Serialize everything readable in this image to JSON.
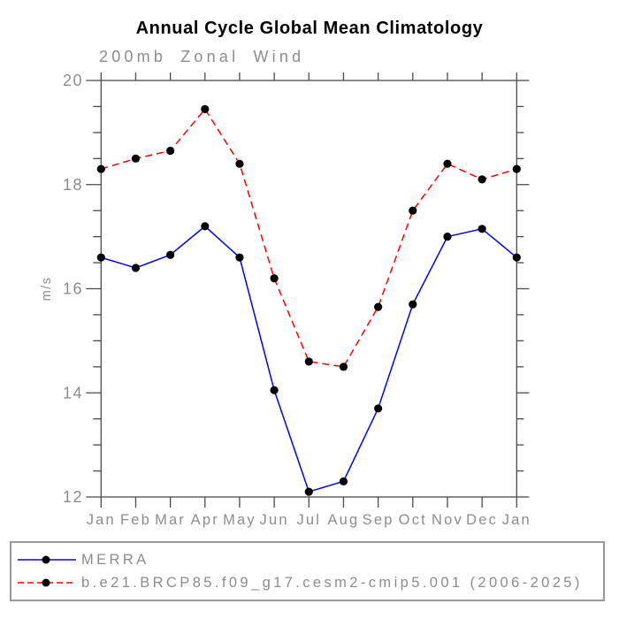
{
  "title": "Annual Cycle Global Mean Climatology",
  "chart_data": {
    "type": "line",
    "subtitle": "200mb Zonal Wind",
    "categories": [
      "Jan",
      "Feb",
      "Mar",
      "Apr",
      "May",
      "Jun",
      "Jul",
      "Aug",
      "Sep",
      "Oct",
      "Nov",
      "Dec",
      "Jan"
    ],
    "ylabel": "m/s",
    "ylim": [
      12,
      20
    ],
    "ytick_major": [
      12,
      14,
      16,
      18,
      20
    ],
    "ytick_minor_step": 0.5,
    "grid": false,
    "legend_position": "bottom",
    "series": [
      {
        "name": "MERRA",
        "line_color": "#0000ff",
        "line_style": "solid",
        "marker": "filled-circle",
        "marker_color": "#000000",
        "values": [
          16.6,
          16.4,
          16.65,
          17.2,
          16.6,
          14.05,
          12.1,
          12.3,
          13.7,
          15.7,
          17.0,
          17.15,
          16.6
        ]
      },
      {
        "name": "b.e21.BRCP85.f09_g17.cesm2-cmip5.001 (2006-2025)",
        "line_color": "#ff0000",
        "line_style": "dashed",
        "marker": "filled-circle",
        "marker_color": "#000000",
        "values": [
          18.3,
          18.5,
          18.65,
          19.45,
          18.4,
          16.2,
          14.6,
          14.5,
          15.65,
          17.5,
          18.4,
          18.1,
          18.3
        ]
      }
    ]
  },
  "colors": {
    "title_text": "#000000",
    "label_text": "#8c8c8c",
    "axis": "#4a4a4a",
    "legend_border": "#999999",
    "background": "#ffffff"
  }
}
